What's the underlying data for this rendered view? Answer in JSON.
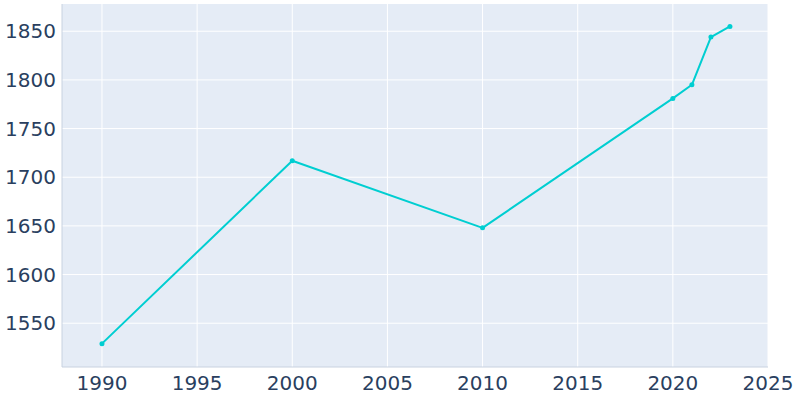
{
  "chart_data": {
    "type": "line",
    "x": [
      1990,
      2000,
      2010,
      2020,
      2021,
      2022,
      2023
    ],
    "values": [
      1529,
      1717,
      1648,
      1781,
      1795,
      1844,
      1855
    ],
    "color": "#00ced1",
    "marker": "circle",
    "xlim": [
      1987.9,
      2025
    ],
    "xticks": [
      1990,
      1995,
      2000,
      2005,
      2010,
      2015,
      2020,
      2025
    ],
    "ylim": [
      1505,
      1878
    ],
    "yticks": [
      1550,
      1600,
      1650,
      1700,
      1750,
      1800,
      1850
    ],
    "grid": true
  }
}
